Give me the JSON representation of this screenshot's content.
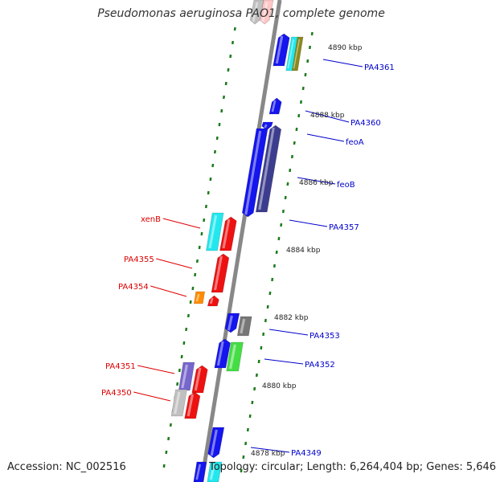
{
  "title": "Pseudomonas aeruginosa PAO1, complete genome",
  "footer": {
    "accession": "Accession: NC_002516",
    "topology": "Topology: circular; Length: 6,264,404 bp; Genes: 5,646"
  },
  "colors": {
    "backbone": "#888888",
    "tick": "#1c7a1c",
    "forward_label": "#0000cc",
    "reverse_label": "#dd0000",
    "blue": "#1515ee",
    "navy": "#3d3d8f",
    "cyan": "#22e8ee",
    "olive": "#8a8a1c",
    "green": "#44dd44",
    "gray": "#777777",
    "lightgray": "#c0c0c0",
    "red": "#ee1111",
    "orange": "#ff8c00",
    "violet": "#7766cc",
    "pink": "#ffc6c6"
  },
  "scale_labels": [
    "4890 kbp",
    "4888 kbp",
    "4886 kbp",
    "4884 kbp",
    "4882 kbp",
    "4880 kbp",
    "4878 kbp"
  ],
  "gene_labels": {
    "forward": [
      "PA4361",
      "PA4360",
      "feoA",
      "feoB",
      "PA4357",
      "PA4353",
      "PA4352",
      "PA4349"
    ],
    "reverse": [
      "xenB",
      "PA4355",
      "PA4354",
      "PA4351",
      "PA4350"
    ]
  }
}
